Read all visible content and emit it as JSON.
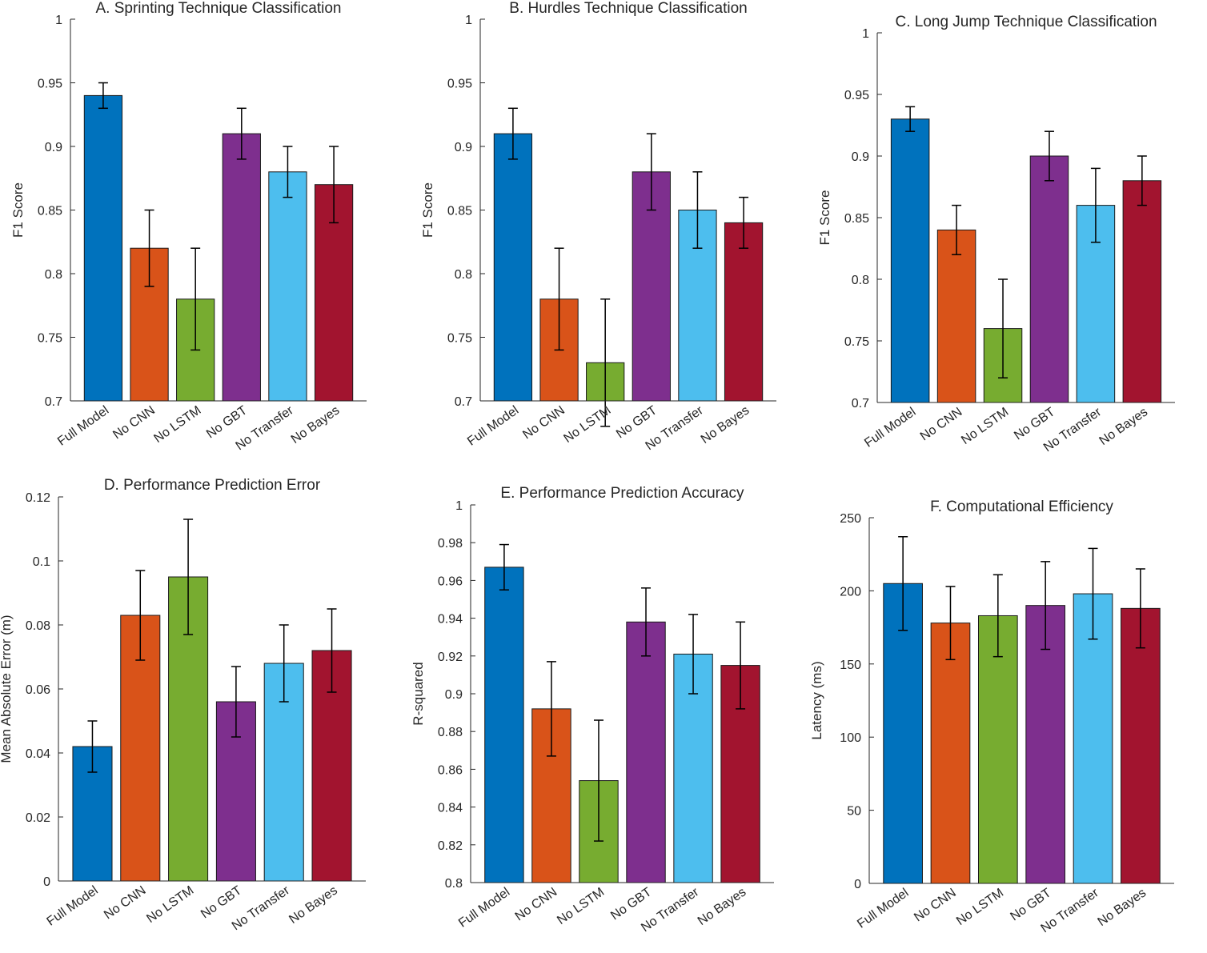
{
  "chart_data": [
    {
      "type": "bar",
      "title": "A. Sprinting Technique Classification",
      "xlabel": "",
      "ylabel": "F1 Score",
      "ylim": [
        0.7,
        1
      ],
      "yticks": [
        0.7,
        0.75,
        0.8,
        0.85,
        0.9,
        0.95,
        1
      ],
      "ytick_labels": [
        "0.7",
        "0.75",
        "0.8",
        "0.85",
        "0.9",
        "0.95",
        "1"
      ],
      "categories": [
        "Full Model",
        "No CNN",
        "No LSTM",
        "No GBT",
        "No Transfer",
        "No Bayes"
      ],
      "values": [
        0.94,
        0.82,
        0.78,
        0.91,
        0.88,
        0.87
      ],
      "err_low": [
        0.93,
        0.79,
        0.74,
        0.89,
        0.86,
        0.84
      ],
      "err_high": [
        0.95,
        0.85,
        0.82,
        0.93,
        0.9,
        0.9
      ]
    },
    {
      "type": "bar",
      "title": "B. Hurdles Technique Classification",
      "xlabel": "",
      "ylabel": "F1 Score",
      "ylim": [
        0.7,
        1
      ],
      "yticks": [
        0.7,
        0.75,
        0.8,
        0.85,
        0.9,
        0.95,
        1
      ],
      "ytick_labels": [
        "0.7",
        "0.75",
        "0.8",
        "0.85",
        "0.9",
        "0.95",
        "1"
      ],
      "categories": [
        "Full Model",
        "No CNN",
        "No LSTM",
        "No GBT",
        "No Transfer",
        "No Bayes"
      ],
      "values": [
        0.91,
        0.78,
        0.73,
        0.88,
        0.85,
        0.84
      ],
      "err_low": [
        0.89,
        0.74,
        0.68,
        0.85,
        0.82,
        0.82
      ],
      "err_high": [
        0.93,
        0.82,
        0.78,
        0.91,
        0.88,
        0.86
      ]
    },
    {
      "type": "bar",
      "title": "C. Long Jump Technique Classification",
      "xlabel": "",
      "ylabel": "F1 Score",
      "ylim": [
        0.7,
        1
      ],
      "yticks": [
        0.7,
        0.75,
        0.8,
        0.85,
        0.9,
        0.95,
        1
      ],
      "ytick_labels": [
        "0.7",
        "0.75",
        "0.8",
        "0.85",
        "0.9",
        "0.95",
        "1"
      ],
      "categories": [
        "Full Model",
        "No CNN",
        "No LSTM",
        "No GBT",
        "No Transfer",
        "No Bayes"
      ],
      "values": [
        0.93,
        0.84,
        0.76,
        0.9,
        0.86,
        0.88
      ],
      "err_low": [
        0.92,
        0.82,
        0.72,
        0.88,
        0.83,
        0.86
      ],
      "err_high": [
        0.94,
        0.86,
        0.8,
        0.92,
        0.89,
        0.9
      ]
    },
    {
      "type": "bar",
      "title": "D. Performance Prediction Error",
      "xlabel": "",
      "ylabel": "Mean Absolute Error (m)",
      "ylim": [
        0,
        0.12
      ],
      "yticks": [
        0,
        0.02,
        0.04,
        0.06,
        0.08,
        0.1,
        0.12
      ],
      "ytick_labels": [
        "0",
        "0.02",
        "0.04",
        "0.06",
        "0.08",
        "0.1",
        "0.12"
      ],
      "categories": [
        "Full Model",
        "No CNN",
        "No LSTM",
        "No GBT",
        "No Transfer",
        "No Bayes"
      ],
      "values": [
        0.042,
        0.083,
        0.095,
        0.056,
        0.068,
        0.072
      ],
      "err_low": [
        0.034,
        0.069,
        0.077,
        0.045,
        0.056,
        0.059
      ],
      "err_high": [
        0.05,
        0.097,
        0.113,
        0.067,
        0.08,
        0.085
      ]
    },
    {
      "type": "bar",
      "title": "E. Performance Prediction Accuracy",
      "xlabel": "",
      "ylabel": "R-squared",
      "ylim": [
        0.8,
        1
      ],
      "yticks": [
        0.8,
        0.82,
        0.84,
        0.86,
        0.88,
        0.9,
        0.92,
        0.94,
        0.96,
        0.98,
        1
      ],
      "ytick_labels": [
        "0.8",
        "0.82",
        "0.84",
        "0.86",
        "0.88",
        "0.9",
        "0.92",
        "0.94",
        "0.96",
        "0.98",
        "1"
      ],
      "categories": [
        "Full Model",
        "No CNN",
        "No LSTM",
        "No GBT",
        "No Transfer",
        "No Bayes"
      ],
      "values": [
        0.967,
        0.892,
        0.854,
        0.938,
        0.921,
        0.915
      ],
      "err_low": [
        0.955,
        0.867,
        0.822,
        0.92,
        0.9,
        0.892
      ],
      "err_high": [
        0.979,
        0.917,
        0.886,
        0.956,
        0.942,
        0.938
      ]
    },
    {
      "type": "bar",
      "title": "F. Computational Efficiency",
      "xlabel": "",
      "ylabel": "Latency (ms)",
      "ylim": [
        0,
        250
      ],
      "yticks": [
        0,
        50,
        100,
        150,
        200,
        250
      ],
      "ytick_labels": [
        "0",
        "50",
        "100",
        "150",
        "200",
        "250"
      ],
      "categories": [
        "Full Model",
        "No CNN",
        "No LSTM",
        "No GBT",
        "No Transfer",
        "No Bayes"
      ],
      "values": [
        205,
        178,
        183,
        190,
        198,
        188
      ],
      "err_low": [
        173,
        153,
        155,
        160,
        167,
        161
      ],
      "err_high": [
        237,
        203,
        211,
        220,
        229,
        215
      ]
    }
  ],
  "colors": [
    "#0072BD",
    "#D95319",
    "#77AC30",
    "#7E2F8E",
    "#4DBEEE",
    "#A2142F"
  ]
}
